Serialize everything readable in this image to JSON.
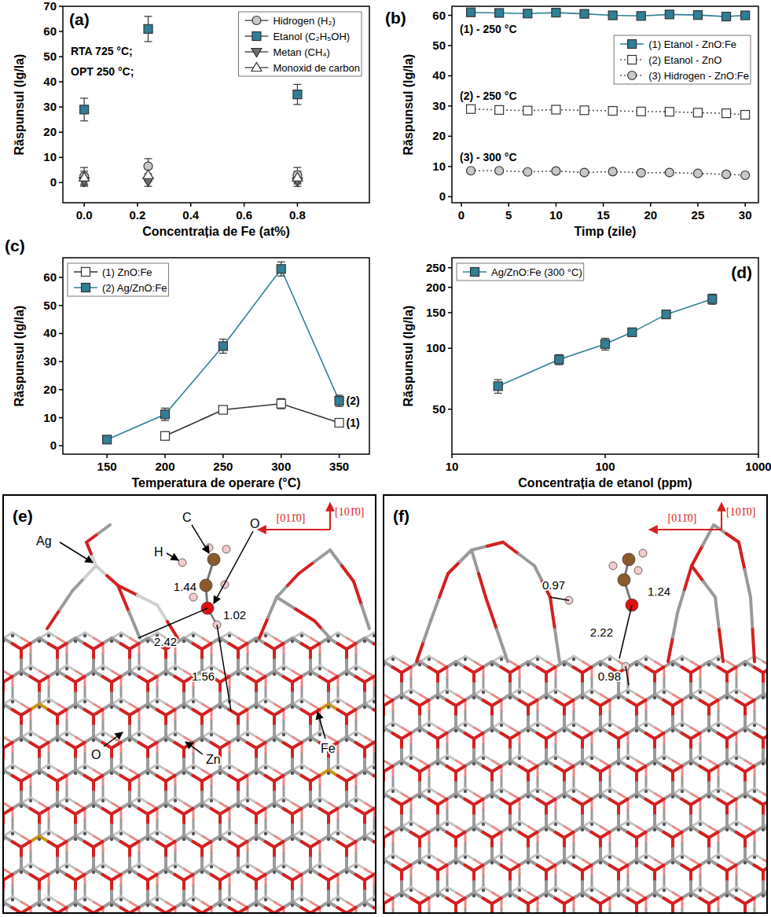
{
  "chart_data": [
    {
      "type": "scatter",
      "label": "(a)",
      "x_label": "Concentrația de Fe (at%)",
      "y_label": "Răspunsul (Ig/Ia)",
      "annotations": [
        "RTA 725 °C;",
        "OPT 250 °C;"
      ],
      "xlim": [
        -0.08,
        1.07
      ],
      "xticks": [
        {
          "value": 0,
          "label": "0.0"
        },
        0.2,
        0.4,
        0.6,
        0.8
      ],
      "ylim": [
        -8,
        70
      ],
      "yticks": [
        0,
        10,
        20,
        30,
        40,
        50,
        60,
        70
      ],
      "legend": "top-right",
      "x": [
        0,
        0.24,
        0.8
      ],
      "series": [
        {
          "name": "Hidrogen (H₂)",
          "color": "#c8c8c8",
          "marker": "circle",
          "values": [
            2.5,
            6.5,
            3
          ],
          "errors": [
            3.5,
            3,
            3
          ]
        },
        {
          "name": "Etanol (C₂H₅OH)",
          "color": "#2f7f96",
          "marker": "square",
          "values": [
            29,
            61,
            35
          ],
          "errors": [
            4.5,
            5,
            4
          ]
        },
        {
          "name": "Metan (CH₄)",
          "color": "#6e6e6e",
          "marker": "triangle-down",
          "values": [
            0.5,
            0.5,
            0.5
          ],
          "errors": [
            2,
            2,
            2
          ]
        },
        {
          "name": "Monoxid de carbon",
          "color": "#ffffff",
          "marker": "triangle-up",
          "values": [
            2,
            3,
            2
          ],
          "errors": [
            2.5,
            2.5,
            2.5
          ]
        }
      ]
    },
    {
      "type": "line",
      "label": "(b)",
      "x_label": "Timp (zile)",
      "y_label": "Răspunsul (Ig/Ia)",
      "annotations": [
        "(1) - 250 °C",
        "(2) - 250 °C",
        "(3) - 300 °C"
      ],
      "xlim": [
        -1,
        31.4
      ],
      "xticks": [
        0,
        5,
        10,
        15,
        20,
        25,
        30
      ],
      "ylim": [
        -2,
        63
      ],
      "yticks": [
        0,
        10,
        20,
        30,
        40,
        50,
        60
      ],
      "legend": "top-right",
      "x": [
        1,
        4,
        7,
        10,
        13,
        16,
        19,
        22,
        25,
        28,
        30
      ],
      "series": [
        {
          "name": "(1) Etanol - ZnO:Fe",
          "color": "#2f7f96",
          "marker": "square",
          "line_style": "solid",
          "values": [
            61,
            60.8,
            60.6,
            60.9,
            60.5,
            60,
            59.8,
            60.3,
            60.1,
            59.6,
            60
          ]
        },
        {
          "name": "(2) Etanol - ZnO",
          "color": "#ffffff",
          "marker": "square",
          "line_style": "dotted",
          "values": [
            29,
            28.7,
            28.5,
            28.8,
            28.6,
            28.4,
            28.2,
            28.1,
            27.8,
            27.6,
            27.1
          ]
        },
        {
          "name": "(3) Hidrogen - ZnO:Fe",
          "color": "#c8c8c8",
          "marker": "circle",
          "line_style": "dotted",
          "values": [
            8.6,
            8.6,
            8.2,
            8.5,
            8,
            8.3,
            7.9,
            8,
            7.7,
            7.4,
            7.1
          ]
        }
      ]
    },
    {
      "type": "line",
      "label": "(c)",
      "x_label": "Temperatura de operare (°C)",
      "y_label": "Răspunsul (Ig/Ia)",
      "annotations": [
        "(1)",
        "(2)"
      ],
      "xlim": [
        112,
        376
      ],
      "xticks": [
        150,
        200,
        250,
        300,
        350
      ],
      "ylim": [
        -3,
        67
      ],
      "yticks": [
        0,
        10,
        20,
        30,
        40,
        50,
        60
      ],
      "legend": "top-left",
      "x": [
        150,
        200,
        250,
        300,
        350
      ],
      "series": [
        {
          "name": "(1) ZnO:Fe",
          "color": "#ffffff",
          "marker": "square",
          "line_style": "solid",
          "values": [
            null,
            3.5,
            12.8,
            15,
            8.2
          ],
          "errors": [
            null,
            0.8,
            1.2,
            1.8,
            1.3
          ]
        },
        {
          "name": "(2) Ag/ZnO:Fe",
          "color": "#2f7f96",
          "marker": "square",
          "line_style": "solid",
          "values": [
            2.2,
            11.2,
            35.5,
            63,
            16
          ],
          "errors": [
            0.4,
            2.2,
            2.5,
            2.5,
            2
          ]
        }
      ]
    },
    {
      "type": "line",
      "label": "(d)",
      "x_label": "Concentrația de etanol (ppm)",
      "y_label": "Răspunsul (Ig/Ia)",
      "log": true,
      "xlim": [
        10,
        1000
      ],
      "xticks": [
        10,
        100,
        1000
      ],
      "ylim": [
        30,
        280
      ],
      "yticks": [
        50,
        100,
        150,
        200,
        250
      ],
      "legend": "top-left",
      "x": [
        20,
        50,
        100,
        150,
        250,
        500
      ],
      "series": [
        {
          "name": "Ag/ZnO:Fe (300 °C)",
          "color": "#2f7f96",
          "marker": "square",
          "line_style": "solid",
          "values": [
            65,
            88,
            105,
            120,
            147,
            175
          ],
          "errors": [
            5,
            5,
            7,
            5,
            5,
            10
          ]
        }
      ]
    }
  ],
  "structures": [
    {
      "label": "(e)",
      "directions": [
        "[011̄0]",
        "[101̄0]"
      ],
      "atoms": [
        "H",
        "C",
        "O",
        "Ag",
        "O",
        "Zn",
        "Fe"
      ],
      "distances": [
        1.44,
        1.02,
        2.42,
        1.56
      ]
    },
    {
      "label": "(f)",
      "directions": [
        "[011̄0]",
        "[101̄0]"
      ],
      "distances": [
        0.97,
        1.24,
        2.22,
        0.98
      ]
    }
  ]
}
